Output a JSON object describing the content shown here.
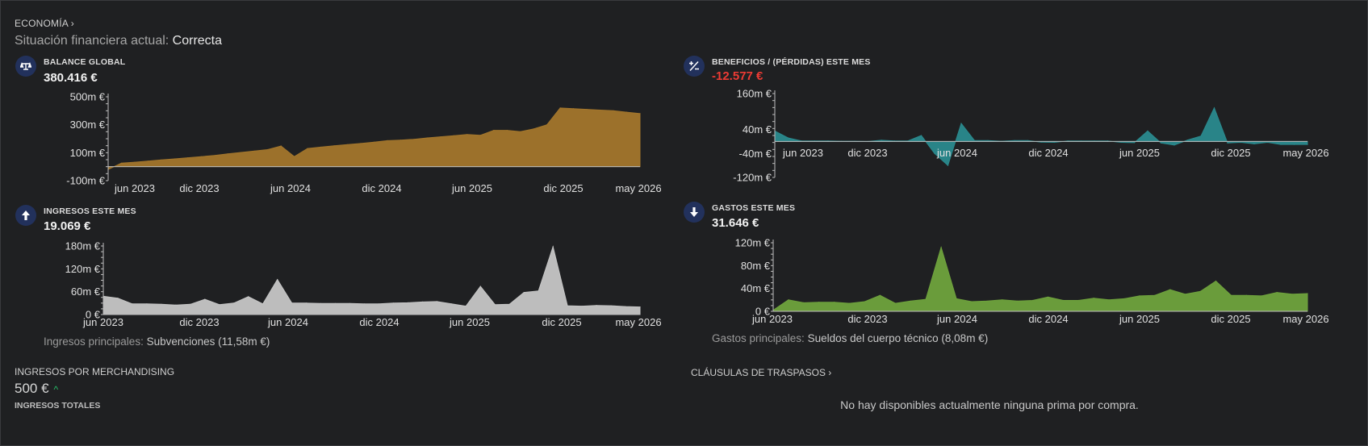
{
  "breadcrumb": "ECONOMÍA ›",
  "status": {
    "label": "Situación financiera actual: ",
    "value": "Correcta"
  },
  "cards": [
    {
      "id": "balance",
      "icon": "scale-icon",
      "label": "BALANCE GLOBAL",
      "value": "380.416 €",
      "negative": false,
      "color": "#a3762c",
      "yticks": [
        {
          "v": 500,
          "label": "500m €"
        },
        {
          "v": 300,
          "label": "300m €"
        },
        {
          "v": 100,
          "label": "100m €"
        },
        {
          "v": -100,
          "label": "-100m €"
        }
      ],
      "ymin": -100,
      "ymax": 500,
      "values": [
        -20,
        25,
        32,
        40,
        48,
        56,
        64,
        72,
        80,
        92,
        102,
        112,
        122,
        148,
        72,
        130,
        140,
        150,
        158,
        166,
        176,
        186,
        190,
        196,
        206,
        214,
        222,
        230,
        225,
        260,
        260,
        250,
        270,
        300,
        420,
        415,
        410,
        405,
        400,
        390,
        380
      ],
      "footnote": null
    },
    {
      "id": "profit",
      "icon": "plus-minus-icon",
      "label": "BENEFICIOS / (PÉRDIDAS) ESTE MES",
      "value": "-12.577 €",
      "negative": true,
      "color": "#2a8a8e",
      "yticks": [
        {
          "v": 160,
          "label": "160m €"
        },
        {
          "v": 40,
          "label": "40m €"
        },
        {
          "v": -40,
          "label": "-40m €"
        },
        {
          "v": -120,
          "label": "-120m €"
        }
      ],
      "ymin": -120,
      "ymax": 160,
      "values": [
        35,
        12,
        2,
        2,
        2,
        1,
        1,
        0,
        4,
        2,
        2,
        20,
        -40,
        -80,
        60,
        3,
        3,
        1,
        3,
        3,
        -2,
        -3,
        2,
        2,
        2,
        2,
        -3,
        -4,
        35,
        -5,
        -12,
        5,
        18,
        112,
        -5,
        -3,
        -8,
        -3,
        -10,
        -10,
        -10
      ],
      "footnote": null
    },
    {
      "id": "income",
      "icon": "arrow-up-icon",
      "label": "INGRESOS ESTE MES",
      "value": "19.069 €",
      "negative": false,
      "color": "#c6c6c6",
      "yticks": [
        {
          "v": 180,
          "label": "180m €"
        },
        {
          "v": 120,
          "label": "120m €"
        },
        {
          "v": 60,
          "label": "60m €"
        },
        {
          "v": 0,
          "label": "0 €"
        }
      ],
      "ymin": 0,
      "ymax": 180,
      "values": [
        48,
        43,
        28,
        28,
        27,
        25,
        27,
        40,
        26,
        30,
        47,
        28,
        92,
        30,
        30,
        29,
        29,
        29,
        28,
        28,
        30,
        31,
        33,
        34,
        28,
        22,
        74,
        26,
        27,
        58,
        62,
        178,
        23,
        22,
        24,
        23,
        21,
        20
      ],
      "footnote": {
        "label": "Ingresos principales: ",
        "value": "Subvenciones (11,58m €)"
      }
    },
    {
      "id": "expenses",
      "icon": "arrow-down-icon",
      "label": "GASTOS ESTE MES",
      "value": "31.646 €",
      "negative": false,
      "color": "#6fa33d",
      "yticks": [
        {
          "v": 120,
          "label": "120m €"
        },
        {
          "v": 80,
          "label": "80m €"
        },
        {
          "v": 40,
          "label": "40m €"
        },
        {
          "v": 0,
          "label": "0 €"
        }
      ],
      "ymin": 0,
      "ymax": 120,
      "values": [
        2,
        20,
        15,
        16,
        16,
        14,
        17,
        28,
        14,
        18,
        21,
        112,
        22,
        17,
        18,
        20,
        18,
        19,
        25,
        19,
        19,
        23,
        20,
        22,
        27,
        28,
        38,
        30,
        35,
        53,
        28,
        28,
        27,
        33,
        30,
        31
      ],
      "footnote": {
        "label": "Gastos principales: ",
        "value": "Sueldos del cuerpo técnico (8,08m €)"
      }
    }
  ],
  "xticks": [
    "jun 2023",
    "dic 2023",
    "jun 2024",
    "dic 2024",
    "jun 2025",
    "dic 2025",
    "may 2026"
  ],
  "merch": {
    "label": "INGRESOS POR MERCHANDISING",
    "value": "500 €",
    "trend_icon": "trend-up-icon",
    "sublabel": "INGRESOS TOTALES"
  },
  "clauses": "CLÁUSULAS DE TRASPASOS ›",
  "no_bonus": "No hay disponibles actualmente ninguna prima por compra."
}
